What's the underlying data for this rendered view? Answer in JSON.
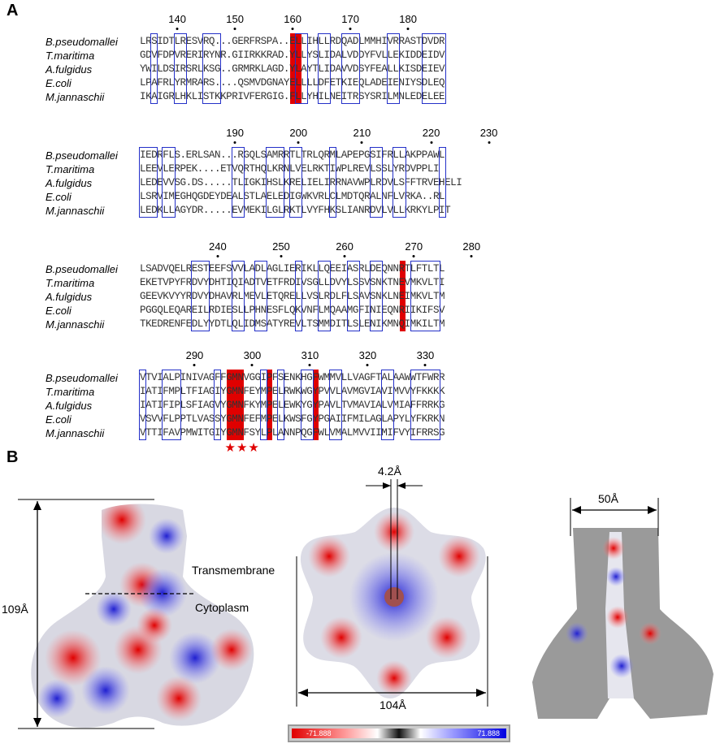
{
  "panels": {
    "a": "A",
    "b": "B"
  },
  "species": [
    "B.pseudomallei",
    "T.maritima",
    "A.fulgidus",
    "E.coli",
    "M.jannaschii"
  ],
  "blocks": [
    {
      "numbers": [
        "140",
        "150",
        "160",
        "170",
        "180"
      ],
      "rows": [
        "LRSIDTLRESVRQ...GERFRSPA..ELLIHLLRDQADLMMHIVRRASTDVDR",
        "GDVFDPVRERIRYNR.GIIRKKRAD.YLLYSLIDALVDDYFVLLEKIDDEIDV",
        "YWILDSIRSRLKSG..GRMRKLAGD.YLAYTLIDAVVDSYFEALLKISDEIEV",
        "LPAFRLYRMRARS....QSMVDGNAYELLLLDFETKIEQLADEIENIYSDLEQ",
        "IKAIGRLHKLISTKKPRIVFERGIG.FLLYHILNEITRSYSRILMNLEDELEE"
      ]
    },
    {
      "numbers": [
        "190",
        "200",
        "210",
        "220",
        "230"
      ],
      "rows": [
        "IEDRFLS.ERLSAN...RGQLSAMRRTLTRLQRMLAPEPGSIFRLLAKPPAWL",
        "LEEVLERPEK....ETVQRTHQLKRNLVELRKTIWPLREVLSSLYRDVPPLI",
        "LEDEVVSG.DS.....TLIGKIHSLKRELIELIRRNAVWPLRDVLSFFTRVEHELI",
        "LSRVIMEGHQGDEYDEALSTLAELEDIGWKVRLCLMDTQRALNFLVRKA..RL",
        "LEDKLLAGYDR.....EVMEKILGLRKTLVYFHKSLIANRDVLVLLKRKYLPIT"
      ]
    },
    {
      "numbers": [
        "240",
        "250",
        "260",
        "270",
        "280"
      ],
      "rows": [
        "LSADVQELRESTEEFSVVLADLAGLIERIKLLQEEIASRLDEQNNRTLFTLTL",
        "EKETVPYFRDVYDHTIQIADTVETFRDIVSGLLDVYLSSVSNKTNEVMKVLTI",
        "GEEVKVYYRDVYDHAVRLMEVLETQRELLVSLRDLFLSAVSNKLNEIMKVLTM",
        "PGGQLEQAREILRDIESLLPHNESFLQKVNFLMQAAMGFINIEQNRIIKIFSV",
        "TKEDRENFEDLYYDTLQLIDMSATYREVLTSMMDITLSLENIKMNQIMKILTM"
      ]
    },
    {
      "numbers": [
        "290",
        "300",
        "310",
        "320",
        "330"
      ],
      "rows": [
        "VTVIALPINIVAGFFGMNVGGIPFSENKHGFWMMVLLVAGFTALAAWWTFWRR",
        "IATIFMPLTFIAGIYGMNFEYMPELRWKWGYPVVLAVMGVIAVIMVVYFKKKK",
        "IATIFIPLSFIAGVYGMNFKYMPELEWKYGYPAVLTVMAVIALVMIAFFRRKG",
        "VSVVFLPPTLVASSYGMNFEFMPELKWSFGYPGAIIFMILAGLAPYLYFKRKN",
        "VTTIFAVPMWITGIYGMNFSYLPLANNPQGFWLVMALMVVIIMIFVYIFRRSG"
      ],
      "stars": "★★★"
    }
  ],
  "panel_b": {
    "height_label": "109Å",
    "transmembrane_label": "Transmembrane",
    "cytoplasm_label": "Cytoplasm",
    "pore_label": "4.2Å",
    "width_label": "104Å",
    "cavity_label": "50Å",
    "colorbar": {
      "min": "-71.888",
      "max": "71.888"
    }
  },
  "colors": {
    "conserved_fill": "#e00000",
    "box_border": "#2430c8",
    "similar_text": "#e8141a"
  }
}
